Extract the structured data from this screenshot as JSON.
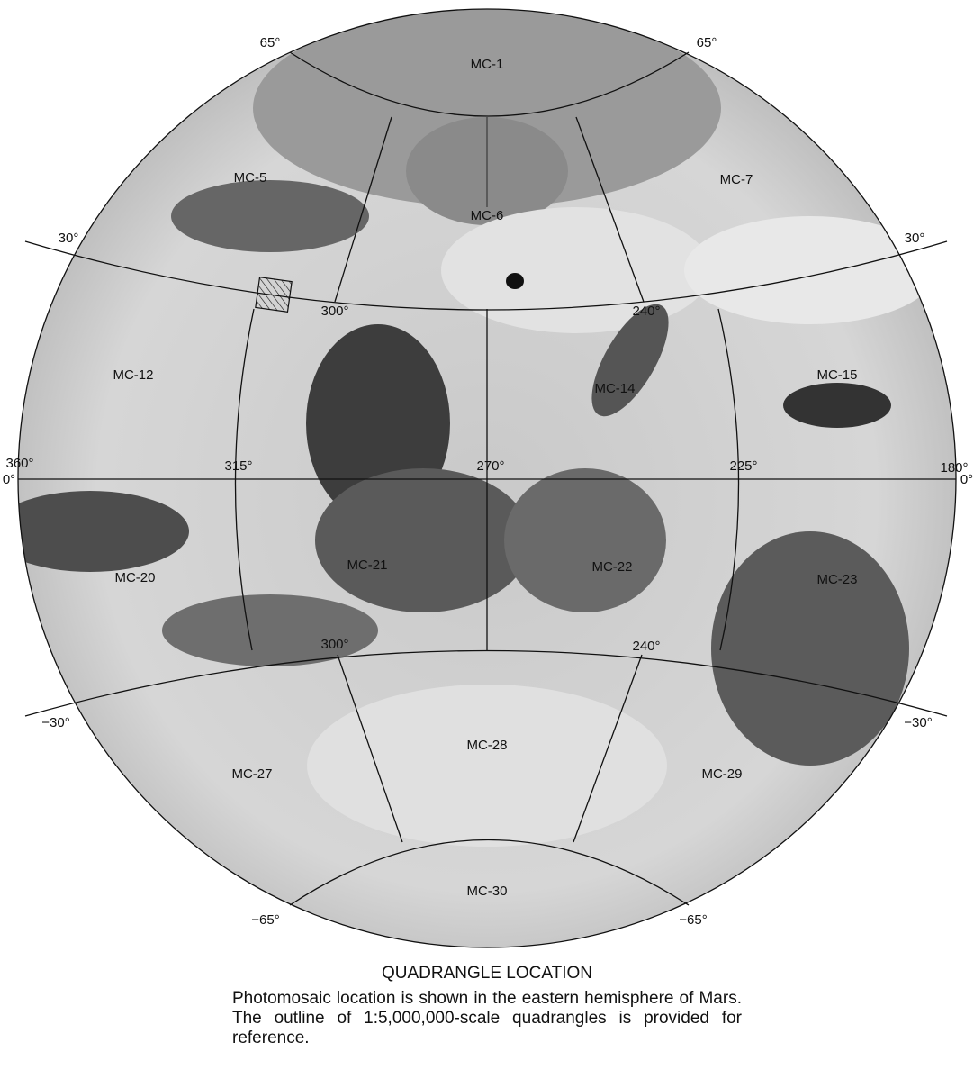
{
  "map": {
    "quadrangles": [
      "MC-1",
      "MC-5",
      "MC-6",
      "MC-7",
      "MC-12",
      "MC-14",
      "MC-15",
      "MC-20",
      "MC-21",
      "MC-22",
      "MC-23",
      "MC-27",
      "MC-28",
      "MC-29",
      "MC-30"
    ],
    "grid_labels": [
      "65°",
      "65°",
      "30°",
      "30°",
      "300°",
      "240°",
      "360°",
      "0°",
      "180°",
      "0°",
      "315°",
      "270°",
      "225°",
      "300°",
      "240°",
      "−30°",
      "−30°",
      "−65°",
      "−65°"
    ]
  },
  "caption": {
    "title": "QUADRANGLE LOCATION",
    "text": "Photomosaic location is shown in the eastern hemisphere of Mars. The outline of 1:5,000,000-scale quadrangles is provided for reference."
  }
}
